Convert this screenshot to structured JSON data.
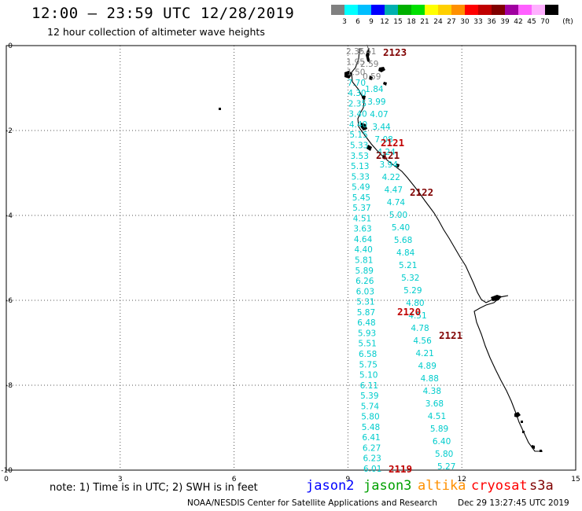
{
  "header": {
    "title": "12:00 — 23:59 UTC 12/28/2019",
    "subtitle": "12 hour collection of altimeter wave heights"
  },
  "color_scale": {
    "unit": "(ft)",
    "swatches": [
      "#808080",
      "#00ffff",
      "#00bfff",
      "#0000ff",
      "#00b0b0",
      "#00b000",
      "#00e000",
      "#ffff00",
      "#ffd000",
      "#ff9000",
      "#ff0000",
      "#c00000",
      "#800000",
      "#a000a0",
      "#ff60ff",
      "#ffb0ff",
      "#000000"
    ],
    "labels": [
      "3",
      "6",
      "9",
      "12",
      "15",
      "18",
      "21",
      "24",
      "27",
      "30",
      "33",
      "36",
      "39",
      "42",
      "45",
      "70"
    ]
  },
  "map": {
    "x_ticks": [
      "0",
      "3",
      "6",
      "9",
      "12",
      "15"
    ],
    "y_ticks": [
      "0",
      "-2",
      "-4",
      "-6",
      "-8",
      "-10"
    ],
    "pass_labels": [
      {
        "text": "2123",
        "color": "#800000"
      },
      {
        "text": "2121",
        "color": "#c00000"
      },
      {
        "text": "2121",
        "color": "#800000"
      },
      {
        "text": "2122",
        "color": "#800000"
      },
      {
        "text": "2120",
        "color": "#c00000"
      },
      {
        "text": "2121",
        "color": "#800000"
      },
      {
        "text": "2119",
        "color": "#c00000"
      }
    ],
    "track1_values": [
      "2.35",
      "1.95",
      "1.50",
      "7.70",
      "4.30",
      "2.35",
      "3.40",
      "4.40",
      "5.15",
      "5.33",
      "3.53",
      "5.13",
      "5.33",
      "5.49",
      "5.45",
      "5.37",
      "4.51",
      "3.63",
      "4.64",
      "4.40",
      "5.81",
      "5.89",
      "6.26",
      "6.03",
      "5.31",
      "5.87",
      "6.48",
      "5.93",
      "5.51",
      "6.58",
      "5.75",
      "5.10",
      "6.11",
      "5.39",
      "5.74",
      "5.80",
      "5.48",
      "6.41",
      "6.27",
      "6.23",
      "6.01"
    ],
    "track2_values": [
      "2.41",
      "2.59",
      "0.59",
      "1.84",
      "3.99",
      "4.07",
      "3.44",
      "7.08",
      "4.24",
      "3.94",
      "4.22",
      "4.47",
      "4.74",
      "5.00",
      "5.40",
      "5.68",
      "4.84",
      "5.21",
      "5.32",
      "5.29",
      "4.80",
      "4.51",
      "4.78",
      "4.56",
      "4.21",
      "4.89",
      "4.88",
      "4.38",
      "3.68",
      "4.51",
      "5.89",
      "6.40",
      "5.80",
      "5.27"
    ]
  },
  "legend": {
    "satellites": [
      {
        "name": "jason2",
        "color": "#0000ff"
      },
      {
        "name": "jason3",
        "color": "#00a000"
      },
      {
        "name": "altika",
        "color": "#ff9000"
      },
      {
        "name": "cryosat",
        "color": "#ff0000"
      },
      {
        "name": "s3a",
        "color": "#800000"
      }
    ]
  },
  "footer": {
    "note": "note: 1) Time is in UTC; 2) SWH is in feet",
    "credit": "NOAA/NESDIS Center for Satellite Applications and Research",
    "timestamp": "Dec 29 13:27:45 UTC 2019"
  }
}
